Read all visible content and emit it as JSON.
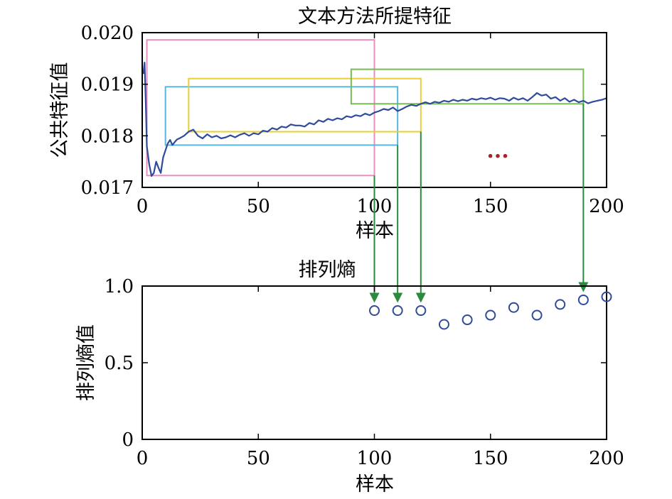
{
  "chart_data": [
    {
      "type": "line",
      "title": "文本方法所提特征",
      "xlabel": "样本",
      "ylabel": "公共特征值",
      "xlim": [
        0,
        200
      ],
      "ylim": [
        0.017,
        0.02
      ],
      "xticks": [
        0,
        50,
        100,
        150,
        200
      ],
      "xtick_labels": [
        "0",
        "50",
        "100",
        "150",
        "200"
      ],
      "yticks": [
        0.017,
        0.018,
        0.019,
        0.02
      ],
      "ytick_labels": [
        "0.017",
        "0.018",
        "0.019",
        "0.020"
      ],
      "grid": false,
      "ellipsis": "...",
      "series": [
        {
          "color": "#2f4b9a",
          "x": [
            0.5,
            1,
            1.5,
            2,
            3,
            4,
            5,
            6,
            7,
            8,
            9,
            10,
            11,
            12,
            13,
            14,
            15,
            16,
            18,
            20,
            22,
            24,
            26,
            28,
            30,
            32,
            34,
            36,
            38,
            40,
            42,
            44,
            46,
            48,
            50,
            52,
            54,
            56,
            58,
            60,
            62,
            64,
            66,
            68,
            70,
            72,
            74,
            76,
            78,
            80,
            82,
            84,
            86,
            88,
            90,
            92,
            94,
            96,
            98,
            100,
            102,
            104,
            106,
            108,
            110,
            112,
            114,
            116,
            118,
            120,
            122,
            124,
            126,
            128,
            130,
            132,
            134,
            136,
            138,
            140,
            142,
            144,
            146,
            148,
            150,
            152,
            154,
            156,
            158,
            160,
            162,
            164,
            166,
            168,
            170,
            172,
            174,
            176,
            178,
            180,
            182,
            184,
            186,
            188,
            190,
            192,
            194,
            196,
            198,
            200
          ],
          "y": [
            0.0192,
            0.01942,
            0.0187,
            0.0178,
            0.01745,
            0.01722,
            0.01728,
            0.0175,
            0.01738,
            0.01728,
            0.01758,
            0.01772,
            0.01785,
            0.01792,
            0.01782,
            0.01788,
            0.01793,
            0.01795,
            0.018,
            0.01808,
            0.01812,
            0.018,
            0.01795,
            0.01803,
            0.01797,
            0.018,
            0.01795,
            0.01797,
            0.01801,
            0.01797,
            0.01802,
            0.01805,
            0.018,
            0.01805,
            0.01803,
            0.0181,
            0.01808,
            0.01815,
            0.01812,
            0.01818,
            0.01816,
            0.01822,
            0.0182,
            0.0182,
            0.01818,
            0.01825,
            0.01822,
            0.0183,
            0.01827,
            0.01833,
            0.0183,
            0.01834,
            0.01832,
            0.01838,
            0.01836,
            0.0184,
            0.01838,
            0.01843,
            0.0184,
            0.01845,
            0.01848,
            0.01852,
            0.0185,
            0.01855,
            0.01848,
            0.01852,
            0.01857,
            0.0186,
            0.01858,
            0.01862,
            0.01865,
            0.01862,
            0.01866,
            0.01864,
            0.01868,
            0.01866,
            0.0187,
            0.01867,
            0.0187,
            0.01868,
            0.01872,
            0.0187,
            0.01873,
            0.01871,
            0.01874,
            0.0187,
            0.01873,
            0.01872,
            0.01868,
            0.01874,
            0.0187,
            0.01873,
            0.01868,
            0.01875,
            0.01883,
            0.01878,
            0.0188,
            0.01872,
            0.01875,
            0.01868,
            0.01873,
            0.01866,
            0.0187,
            0.01865,
            0.01868,
            0.01863,
            0.01866,
            0.01868,
            0.0187,
            0.01873
          ]
        }
      ],
      "windows": [
        {
          "color": "#e88fc0",
          "x": [
            2,
            100
          ],
          "y": [
            0.01723,
            0.01986
          ]
        },
        {
          "color": "#55b7e4",
          "x": [
            10,
            110
          ],
          "y": [
            0.01782,
            0.01895
          ]
        },
        {
          "color": "#e8cf32",
          "x": [
            20,
            120
          ],
          "y": [
            0.01808,
            0.01911
          ]
        },
        {
          "color": "#77bb55",
          "x": [
            90,
            190
          ],
          "y": [
            0.01862,
            0.01929
          ]
        }
      ]
    },
    {
      "type": "scatter",
      "title": "排列熵",
      "xlabel": "样本",
      "ylabel": "排列熵值",
      "xlim": [
        0,
        200
      ],
      "ylim": [
        0,
        1.0
      ],
      "xticks": [
        0,
        50,
        100,
        150,
        200
      ],
      "xtick_labels": [
        "0",
        "50",
        "100",
        "150",
        "200"
      ],
      "yticks": [
        0,
        0.5,
        1.0
      ],
      "ytick_labels": [
        "0",
        "0.5",
        "1.0"
      ],
      "grid": false,
      "marker": "hollow-circle",
      "marker_color": "#2f4b9a",
      "x": [
        100,
        110,
        120,
        130,
        140,
        150,
        160,
        170,
        180,
        190,
        200
      ],
      "y": [
        0.84,
        0.84,
        0.84,
        0.75,
        0.78,
        0.81,
        0.86,
        0.81,
        0.88,
        0.91,
        0.93
      ],
      "arrow_color": "#2a8a3e",
      "arrows_from_windows_at_x": [
        100,
        110,
        120,
        190
      ]
    }
  ]
}
